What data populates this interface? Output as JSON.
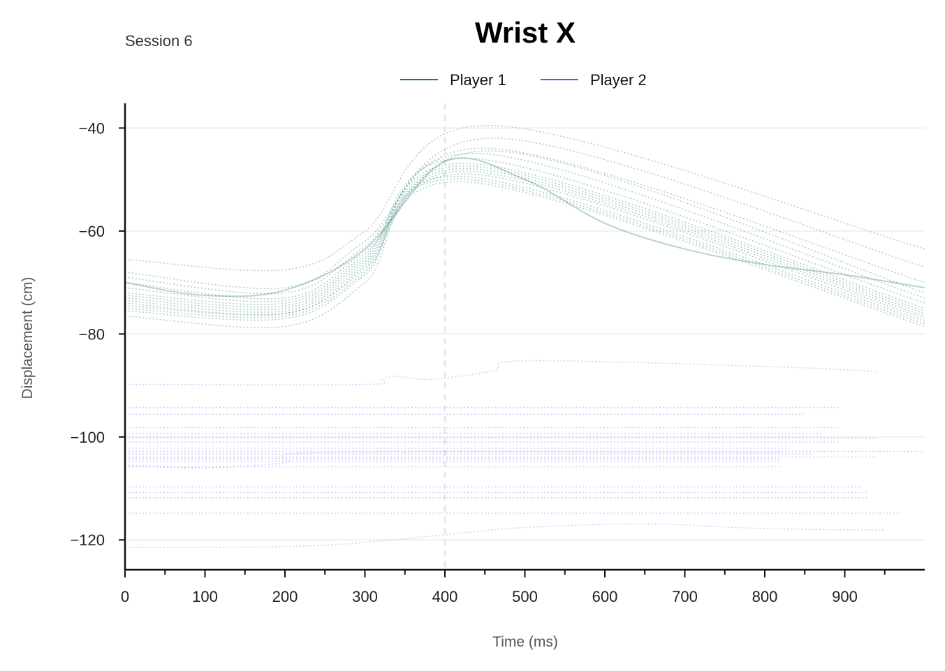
{
  "chart_data": {
    "type": "line",
    "title": "Wrist X",
    "subtitle": "Session 6",
    "xlabel": "Time (ms)",
    "ylabel": "Displacement (cm)",
    "xlim": [
      0,
      1000
    ],
    "ylim": [
      -125.8,
      -35.2
    ],
    "x_ticks": [
      0,
      100,
      200,
      300,
      400,
      500,
      600,
      700,
      800,
      900
    ],
    "y_ticks": [
      -40,
      -60,
      -80,
      -100,
      -120
    ],
    "x_minor_tick_step": 50,
    "grid": "horizontal",
    "vline_x": 400,
    "legend": {
      "placement": "top-center",
      "entries": [
        "Player 1",
        "Player 2"
      ]
    },
    "colors": {
      "Player 1": "#1b7268",
      "Player 2": "#7b48e8"
    },
    "series": [
      {
        "name": "Player 1",
        "color": "#1b7268",
        "mean": {
          "x": [
            0,
            100,
            200,
            300,
            400,
            500,
            600,
            700,
            800,
            900,
            1000
          ],
          "y": [
            -70,
            -72.5,
            -71.5,
            -63.5,
            -46.5,
            -50,
            -58.5,
            -63.5,
            -66.5,
            -68.5,
            -71
          ]
        },
        "trials": [
          {
            "x": [
              0,
              200,
              300,
              460,
              1000
            ],
            "y": [
              -65.5,
              -67.5,
              -60,
              -39.5,
              -63.5
            ]
          },
          {
            "x": [
              0,
              200,
              300,
              470,
              1000
            ],
            "y": [
              -68,
              -71,
              -62,
              -42,
              -67
            ]
          },
          {
            "x": [
              0,
              200,
              300,
              460,
              1000
            ],
            "y": [
              -69,
              -72,
              -63,
              -44,
              -70
            ]
          },
          {
            "x": [
              0,
              200,
              300,
              470,
              1000
            ],
            "y": [
              -70,
              -73,
              -64,
              -44.5,
              -72
            ]
          },
          {
            "x": [
              0,
              200,
              300,
              450,
              1000
            ],
            "y": [
              -71,
              -73.5,
              -64.5,
              -45,
              -73
            ]
          },
          {
            "x": [
              0,
              200,
              300,
              440,
              1000
            ],
            "y": [
              -72,
              -74,
              -65,
              -46,
              -74
            ]
          },
          {
            "x": [
              0,
              200,
              300,
              440,
              1000
            ],
            "y": [
              -72.5,
              -74.5,
              -65.5,
              -47,
              -75
            ]
          },
          {
            "x": [
              0,
              200,
              300,
              440,
              1000
            ],
            "y": [
              -73,
              -75,
              -66,
              -47.5,
              -75.5
            ]
          },
          {
            "x": [
              0,
              200,
              300,
              440,
              1000
            ],
            "y": [
              -73.5,
              -75.5,
              -66.5,
              -48,
              -76
            ]
          },
          {
            "x": [
              0,
              200,
              300,
              440,
              1000
            ],
            "y": [
              -74,
              -76,
              -67,
              -48.5,
              -76.5
            ]
          },
          {
            "x": [
              0,
              200,
              300,
              440,
              1000
            ],
            "y": [
              -74.5,
              -76,
              -67.5,
              -49,
              -77
            ]
          },
          {
            "x": [
              0,
              200,
              300,
              430,
              1000
            ],
            "y": [
              -75,
              -76.5,
              -68,
              -49.5,
              -77.5
            ]
          },
          {
            "x": [
              0,
              200,
              300,
              430,
              1000
            ],
            "y": [
              -75.5,
              -77,
              -68.5,
              -50,
              -78
            ]
          },
          {
            "x": [
              0,
              200,
              300,
              430,
              1000
            ],
            "y": [
              -76.5,
              -78.5,
              -70,
              -50.5,
              -78.5
            ]
          }
        ]
      },
      {
        "name": "Player 2",
        "color": "#7b48e8",
        "trials": [
          {
            "x": [
              0,
              300,
              320,
              340,
              380,
              460,
              500,
              800,
              940
            ],
            "y": [
              -89.8,
              -89.8,
              -88.8,
              -88.2,
              -88.8,
              -87.2,
              -85.2,
              -86.3,
              -87.3
            ]
          },
          {
            "x": [
              0,
              895
            ],
            "y": [
              -94.3,
              -94.3
            ]
          },
          {
            "x": [
              0,
              850
            ],
            "y": [
              -95.6,
              -95.6
            ]
          },
          {
            "x": [
              0,
              895
            ],
            "y": [
              -98.2,
              -98.2
            ]
          },
          {
            "x": [
              0,
              870
            ],
            "y": [
              -99.3,
              -99.3
            ]
          },
          {
            "x": [
              0,
              940
            ],
            "y": [
              -100.2,
              -100.2
            ]
          },
          {
            "x": [
              0,
              895
            ],
            "y": [
              -101.0,
              -101.0
            ]
          },
          {
            "x": [
              0,
              830
            ],
            "y": [
              -102.2,
              -102.2
            ]
          },
          {
            "x": [
              0,
              1000
            ],
            "y": [
              -102.8,
              -102.8
            ]
          },
          {
            "x": [
              0,
              860
            ],
            "y": [
              -103.3,
              -103.3
            ]
          },
          {
            "x": [
              0,
              940
            ],
            "y": [
              -103.9,
              -103.9
            ]
          },
          {
            "x": [
              0,
              820
            ],
            "y": [
              -104.2,
              -104.2
            ]
          },
          {
            "x": [
              0,
              820
            ],
            "y": [
              -104.7,
              -104.7
            ]
          },
          {
            "x": [
              0,
              100,
              200,
              250,
              820
            ],
            "y": [
              -105.5,
              -106.0,
              -105.0,
              -103.0,
              -103.0
            ]
          },
          {
            "x": [
              0,
              820
            ],
            "y": [
              -105.8,
              -105.8
            ]
          },
          {
            "x": [
              0,
              920
            ],
            "y": [
              -109.7,
              -109.7
            ]
          },
          {
            "x": [
              0,
              930
            ],
            "y": [
              -110.8,
              -110.8
            ]
          },
          {
            "x": [
              0,
              930
            ],
            "y": [
              -111.8,
              -111.8
            ]
          },
          {
            "x": [
              0,
              970
            ],
            "y": [
              -114.8,
              -114.8
            ]
          },
          {
            "x": [
              0,
              200,
              300,
              400,
              500,
              650,
              800,
              950
            ],
            "y": [
              -121.5,
              -121.3,
              -120.5,
              -119.0,
              -117.6,
              -116.9,
              -117.8,
              -118.1
            ]
          }
        ]
      }
    ]
  }
}
